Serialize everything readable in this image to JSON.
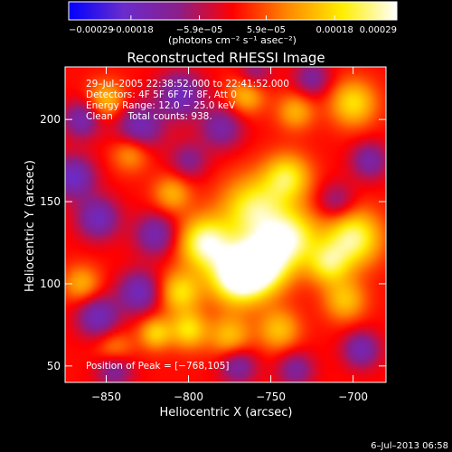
{
  "chart_data": {
    "type": "heatmap",
    "title": "Reconstructed RHESSI Image",
    "xlabel": "Heliocentric X (arcsec)",
    "ylabel": "Heliocentric Y (arcsec)",
    "xlim": [
      -875,
      -680
    ],
    "ylim": [
      40,
      232
    ],
    "xticks": [
      -850,
      -800,
      -750,
      -700
    ],
    "xtick_labels": [
      "−850",
      "−800",
      "−750",
      "−700"
    ],
    "yticks": [
      50,
      100,
      150,
      200
    ],
    "ytick_labels": [
      "50",
      "100",
      "150",
      "200"
    ],
    "colorbar": {
      "colormap": "blue-purple-red-orange-yellow-white",
      "range": [
        -0.00029,
        0.00029
      ],
      "ticks": [
        -0.00029,
        -0.00018,
        -5.9e-05,
        5.9e-05,
        0.00018,
        0.00029
      ],
      "tick_labels": [
        "−0.00029",
        "−0.00018",
        "−5.9e−05",
        "5.9e−05",
        "0.00018",
        "0.00029"
      ],
      "unit_label": "(photons cm⁻² s⁻¹ asec⁻²)",
      "colors": [
        "#0000ff",
        "#6a2ccc",
        "#8a1e8a",
        "#ff0000",
        "#ff8800",
        "#ffee00",
        "#ffffff"
      ]
    },
    "annotations": {
      "time_range": "29–Jul–2005 22:38:52.000 to 22:41:52.000",
      "detectors": "Detectors: 4F 5F 6F 7F 8F, Att 0",
      "energy": "Energy Range: 12.0 − 25.0 keV",
      "clean": "Clean     Total counts: 938.",
      "peak": "Position of Peak = [−768,105]"
    },
    "blobs": [
      {
        "x": -770,
        "y": 105,
        "sigma": 12,
        "amp": 1.0
      },
      {
        "x": -755,
        "y": 112,
        "sigma": 12,
        "amp": 0.85
      },
      {
        "x": -790,
        "y": 125,
        "sigma": 11,
        "amp": 0.8
      },
      {
        "x": -760,
        "y": 145,
        "sigma": 14,
        "amp": 0.7
      },
      {
        "x": -738,
        "y": 128,
        "sigma": 12,
        "amp": 0.7
      },
      {
        "x": -740,
        "y": 165,
        "sigma": 10,
        "amp": 0.6
      },
      {
        "x": -700,
        "y": 128,
        "sigma": 12,
        "amp": 0.75
      },
      {
        "x": -715,
        "y": 112,
        "sigma": 9,
        "amp": 0.55
      },
      {
        "x": -805,
        "y": 95,
        "sigma": 9,
        "amp": 0.55
      },
      {
        "x": -800,
        "y": 72,
        "sigma": 8,
        "amp": 0.55
      },
      {
        "x": -820,
        "y": 70,
        "sigma": 7,
        "amp": 0.5
      },
      {
        "x": -775,
        "y": 68,
        "sigma": 9,
        "amp": 0.45
      },
      {
        "x": -745,
        "y": 72,
        "sigma": 9,
        "amp": 0.45
      },
      {
        "x": -705,
        "y": 90,
        "sigma": 9,
        "amp": 0.45
      },
      {
        "x": -700,
        "y": 210,
        "sigma": 10,
        "amp": 0.55
      },
      {
        "x": -765,
        "y": 215,
        "sigma": 8,
        "amp": 0.45
      },
      {
        "x": -735,
        "y": 205,
        "sigma": 8,
        "amp": 0.4
      },
      {
        "x": -850,
        "y": 212,
        "sigma": 8,
        "amp": 0.45
      },
      {
        "x": -835,
        "y": 180,
        "sigma": 8,
        "amp": 0.4
      },
      {
        "x": -810,
        "y": 155,
        "sigma": 8,
        "amp": 0.4
      },
      {
        "x": -865,
        "y": 100,
        "sigma": 8,
        "amp": 0.4
      },
      {
        "x": -845,
        "y": 60,
        "sigma": 8,
        "amp": 0.35
      },
      {
        "x": -855,
        "y": 140,
        "sigma": 9,
        "amp": -0.55
      },
      {
        "x": -870,
        "y": 165,
        "sigma": 9,
        "amp": -0.6
      },
      {
        "x": -830,
        "y": 195,
        "sigma": 10,
        "amp": -0.55
      },
      {
        "x": -865,
        "y": 200,
        "sigma": 8,
        "amp": -0.5
      },
      {
        "x": -805,
        "y": 215,
        "sigma": 10,
        "amp": -0.55
      },
      {
        "x": -780,
        "y": 195,
        "sigma": 9,
        "amp": -0.45
      },
      {
        "x": -820,
        "y": 130,
        "sigma": 9,
        "amp": -0.5
      },
      {
        "x": -830,
        "y": 95,
        "sigma": 9,
        "amp": -0.55
      },
      {
        "x": -855,
        "y": 80,
        "sigma": 9,
        "amp": -0.55
      },
      {
        "x": -845,
        "y": 48,
        "sigma": 8,
        "amp": -0.45
      },
      {
        "x": -770,
        "y": 50,
        "sigma": 8,
        "amp": -0.45
      },
      {
        "x": -735,
        "y": 48,
        "sigma": 8,
        "amp": -0.4
      },
      {
        "x": -725,
        "y": 225,
        "sigma": 8,
        "amp": -0.4
      },
      {
        "x": -690,
        "y": 175,
        "sigma": 8,
        "amp": -0.45
      },
      {
        "x": -695,
        "y": 60,
        "sigma": 8,
        "amp": -0.5
      },
      {
        "x": -710,
        "y": 150,
        "sigma": 8,
        "amp": -0.35
      },
      {
        "x": -800,
        "y": 175,
        "sigma": 8,
        "amp": -0.35
      },
      {
        "x": -760,
        "y": 228,
        "sigma": 7,
        "amp": -0.35
      }
    ]
  },
  "footer": {
    "timestamp": "6–Jul–2013 06:58"
  }
}
